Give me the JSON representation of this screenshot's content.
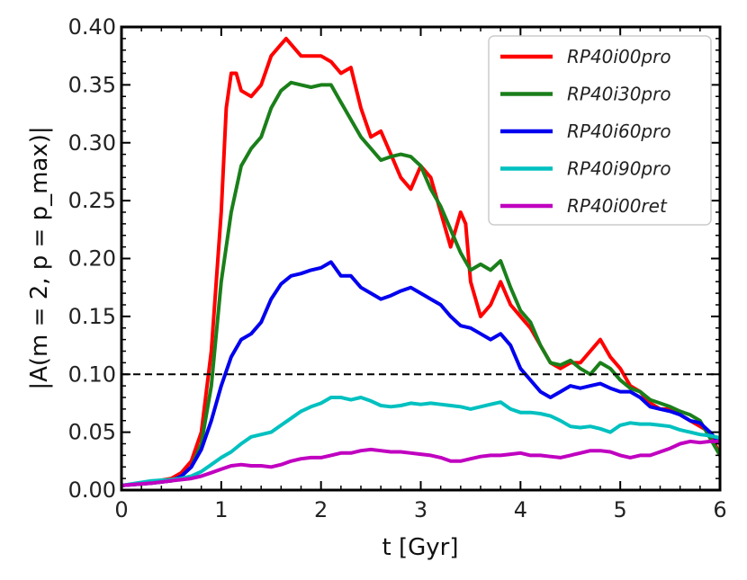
{
  "chart_data": {
    "type": "line",
    "xlabel": "t [Gyr]",
    "ylabel": "|A(m = 2, p = p_max)|",
    "xlim": [
      0,
      6
    ],
    "ylim": [
      0,
      0.4
    ],
    "xticks": [
      0,
      1,
      2,
      3,
      4,
      5,
      6
    ],
    "yticks": [
      "0.00",
      "0.05",
      "0.10",
      "0.15",
      "0.20",
      "0.25",
      "0.30",
      "0.35",
      "0.40"
    ],
    "threshold": 0.1,
    "legend_position": "top-right",
    "series": [
      {
        "name": "RP40i00pro",
        "color": "#ff0000",
        "x": [
          0,
          0.3,
          0.5,
          0.6,
          0.7,
          0.8,
          0.9,
          1.0,
          1.05,
          1.1,
          1.15,
          1.2,
          1.3,
          1.4,
          1.5,
          1.6,
          1.65,
          1.7,
          1.75,
          1.8,
          1.9,
          2.0,
          2.1,
          2.2,
          2.3,
          2.4,
          2.5,
          2.6,
          2.7,
          2.8,
          2.9,
          3.0,
          3.1,
          3.2,
          3.3,
          3.4,
          3.45,
          3.5,
          3.6,
          3.7,
          3.8,
          3.9,
          4.0,
          4.1,
          4.2,
          4.3,
          4.4,
          4.5,
          4.6,
          4.7,
          4.8,
          4.9,
          5.0,
          5.1,
          5.2,
          5.3,
          5.4,
          5.5,
          5.6,
          5.7,
          5.8,
          5.9,
          6.0
        ],
        "y": [
          0.004,
          0.007,
          0.01,
          0.015,
          0.025,
          0.05,
          0.12,
          0.24,
          0.33,
          0.36,
          0.36,
          0.345,
          0.34,
          0.35,
          0.375,
          0.385,
          0.39,
          0.385,
          0.38,
          0.375,
          0.375,
          0.375,
          0.37,
          0.36,
          0.365,
          0.33,
          0.305,
          0.31,
          0.29,
          0.27,
          0.26,
          0.28,
          0.27,
          0.24,
          0.21,
          0.24,
          0.23,
          0.18,
          0.15,
          0.16,
          0.18,
          0.16,
          0.15,
          0.14,
          0.125,
          0.11,
          0.105,
          0.11,
          0.11,
          0.12,
          0.13,
          0.115,
          0.105,
          0.09,
          0.085,
          0.075,
          0.07,
          0.07,
          0.065,
          0.06,
          0.055,
          0.05,
          0.03
        ]
      },
      {
        "name": "RP40i30pro",
        "color": "#1a7f1a",
        "x": [
          0,
          0.3,
          0.5,
          0.6,
          0.7,
          0.8,
          0.9,
          1.0,
          1.1,
          1.2,
          1.3,
          1.4,
          1.5,
          1.6,
          1.7,
          1.8,
          1.9,
          2.0,
          2.1,
          2.2,
          2.3,
          2.4,
          2.5,
          2.6,
          2.7,
          2.8,
          2.9,
          3.0,
          3.1,
          3.2,
          3.3,
          3.4,
          3.5,
          3.6,
          3.7,
          3.8,
          3.9,
          4.0,
          4.1,
          4.2,
          4.3,
          4.4,
          4.5,
          4.6,
          4.7,
          4.8,
          4.9,
          5.0,
          5.1,
          5.2,
          5.3,
          5.4,
          5.5,
          5.6,
          5.7,
          5.8,
          5.9,
          6.0
        ],
        "y": [
          0.004,
          0.006,
          0.008,
          0.012,
          0.02,
          0.04,
          0.09,
          0.18,
          0.24,
          0.28,
          0.295,
          0.305,
          0.33,
          0.345,
          0.352,
          0.35,
          0.348,
          0.35,
          0.35,
          0.335,
          0.32,
          0.305,
          0.295,
          0.285,
          0.288,
          0.29,
          0.288,
          0.28,
          0.26,
          0.245,
          0.225,
          0.205,
          0.19,
          0.195,
          0.19,
          0.198,
          0.175,
          0.155,
          0.145,
          0.125,
          0.11,
          0.108,
          0.112,
          0.105,
          0.1,
          0.11,
          0.105,
          0.095,
          0.088,
          0.085,
          0.078,
          0.075,
          0.072,
          0.068,
          0.065,
          0.06,
          0.045,
          0.03
        ]
      },
      {
        "name": "RP40i60pro",
        "color": "#0000ee",
        "x": [
          0,
          0.3,
          0.5,
          0.6,
          0.7,
          0.8,
          0.9,
          1.0,
          1.1,
          1.2,
          1.3,
          1.4,
          1.5,
          1.6,
          1.7,
          1.8,
          1.9,
          2.0,
          2.1,
          2.2,
          2.3,
          2.4,
          2.5,
          2.6,
          2.7,
          2.8,
          2.9,
          3.0,
          3.1,
          3.2,
          3.3,
          3.4,
          3.5,
          3.6,
          3.7,
          3.8,
          3.9,
          4.0,
          4.1,
          4.2,
          4.3,
          4.4,
          4.5,
          4.6,
          4.7,
          4.8,
          4.9,
          5.0,
          5.1,
          5.2,
          5.3,
          5.4,
          5.5,
          5.6,
          5.7,
          5.8,
          5.9,
          6.0
        ],
        "y": [
          0.004,
          0.006,
          0.008,
          0.012,
          0.02,
          0.035,
          0.06,
          0.09,
          0.115,
          0.13,
          0.135,
          0.145,
          0.165,
          0.178,
          0.185,
          0.187,
          0.19,
          0.192,
          0.197,
          0.185,
          0.185,
          0.175,
          0.17,
          0.165,
          0.168,
          0.172,
          0.175,
          0.17,
          0.165,
          0.16,
          0.15,
          0.142,
          0.14,
          0.135,
          0.13,
          0.135,
          0.125,
          0.105,
          0.095,
          0.085,
          0.08,
          0.085,
          0.09,
          0.088,
          0.09,
          0.092,
          0.088,
          0.085,
          0.085,
          0.08,
          0.072,
          0.07,
          0.068,
          0.065,
          0.06,
          0.058,
          0.05,
          0.04
        ]
      },
      {
        "name": "RP40i90pro",
        "color": "#00c0c0",
        "x": [
          0,
          0.3,
          0.5,
          0.6,
          0.7,
          0.8,
          0.9,
          1.0,
          1.1,
          1.2,
          1.3,
          1.4,
          1.5,
          1.6,
          1.7,
          1.8,
          1.9,
          2.0,
          2.1,
          2.2,
          2.3,
          2.4,
          2.5,
          2.6,
          2.7,
          2.8,
          2.9,
          3.0,
          3.1,
          3.2,
          3.3,
          3.4,
          3.5,
          3.6,
          3.7,
          3.8,
          3.9,
          4.0,
          4.1,
          4.2,
          4.3,
          4.4,
          4.5,
          4.6,
          4.7,
          4.8,
          4.9,
          5.0,
          5.1,
          5.2,
          5.3,
          5.4,
          5.5,
          5.6,
          5.7,
          5.8,
          5.9,
          6.0
        ],
        "y": [
          0.004,
          0.008,
          0.009,
          0.01,
          0.012,
          0.016,
          0.022,
          0.028,
          0.033,
          0.04,
          0.046,
          0.048,
          0.05,
          0.056,
          0.062,
          0.068,
          0.072,
          0.075,
          0.08,
          0.08,
          0.078,
          0.08,
          0.077,
          0.073,
          0.072,
          0.073,
          0.075,
          0.074,
          0.075,
          0.074,
          0.073,
          0.072,
          0.07,
          0.072,
          0.074,
          0.076,
          0.07,
          0.067,
          0.067,
          0.066,
          0.064,
          0.06,
          0.055,
          0.054,
          0.055,
          0.053,
          0.05,
          0.056,
          0.058,
          0.057,
          0.057,
          0.056,
          0.055,
          0.052,
          0.05,
          0.048,
          0.047,
          0.045
        ]
      },
      {
        "name": "RP40i00ret",
        "color": "#c000c0",
        "x": [
          0,
          0.3,
          0.5,
          0.6,
          0.7,
          0.8,
          0.9,
          1.0,
          1.1,
          1.2,
          1.3,
          1.4,
          1.5,
          1.6,
          1.7,
          1.8,
          1.9,
          2.0,
          2.1,
          2.2,
          2.3,
          2.4,
          2.5,
          2.6,
          2.7,
          2.8,
          2.9,
          3.0,
          3.1,
          3.2,
          3.3,
          3.4,
          3.5,
          3.6,
          3.7,
          3.8,
          3.9,
          4.0,
          4.1,
          4.2,
          4.3,
          4.4,
          4.5,
          4.6,
          4.7,
          4.8,
          4.9,
          5.0,
          5.1,
          5.2,
          5.3,
          5.4,
          5.5,
          5.6,
          5.7,
          5.8,
          5.9,
          6.0
        ],
        "y": [
          0.004,
          0.006,
          0.008,
          0.009,
          0.01,
          0.012,
          0.015,
          0.018,
          0.021,
          0.022,
          0.021,
          0.021,
          0.02,
          0.022,
          0.025,
          0.027,
          0.028,
          0.028,
          0.03,
          0.032,
          0.032,
          0.034,
          0.035,
          0.034,
          0.033,
          0.033,
          0.032,
          0.031,
          0.03,
          0.028,
          0.025,
          0.025,
          0.027,
          0.029,
          0.03,
          0.03,
          0.031,
          0.032,
          0.03,
          0.03,
          0.029,
          0.028,
          0.03,
          0.032,
          0.034,
          0.034,
          0.033,
          0.03,
          0.028,
          0.03,
          0.03,
          0.033,
          0.036,
          0.04,
          0.042,
          0.041,
          0.042,
          0.042
        ]
      }
    ]
  }
}
